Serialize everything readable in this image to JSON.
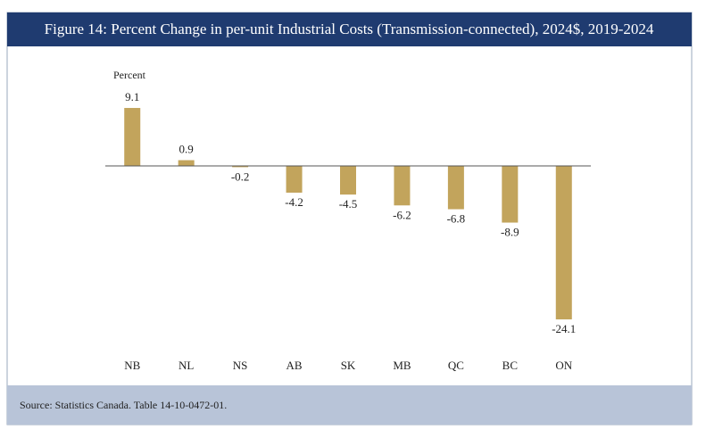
{
  "chart_data": {
    "type": "bar",
    "title": "Figure 14: Percent Change in per-unit Industrial Costs (Transmission-connected), 2024$, 2019-2024",
    "y_label": "Percent",
    "categories": [
      "NB",
      "NL",
      "NS",
      "AB",
      "SK",
      "MB",
      "QC",
      "BC",
      "ON"
    ],
    "values": [
      9.1,
      0.9,
      -0.2,
      -4.2,
      -4.5,
      -6.2,
      -6.8,
      -8.9,
      -24.1
    ],
    "color": "#c2a45c",
    "ylim": [
      -25,
      10
    ],
    "source": "Source: Statistics Canada. Table 14-10-0472-01."
  }
}
